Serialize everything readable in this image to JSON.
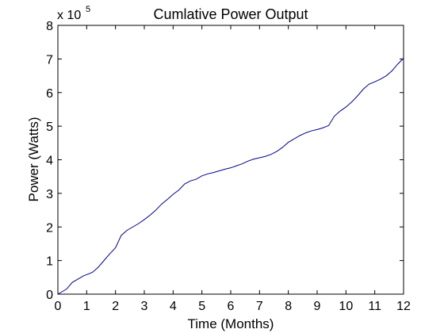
{
  "chart_data": {
    "type": "line",
    "title": "Cumlative Power Output",
    "xlabel": "Time (Months)",
    "ylabel": "Power (Watts)",
    "y_multiplier_label": "x 10",
    "y_multiplier_exponent": "5",
    "xlim": [
      0,
      12
    ],
    "ylim": [
      0,
      8
    ],
    "x_ticks": [
      "0",
      "1",
      "2",
      "3",
      "4",
      "5",
      "6",
      "7",
      "8",
      "9",
      "10",
      "11",
      "12"
    ],
    "y_ticks": [
      "0",
      "1",
      "2",
      "3",
      "4",
      "5",
      "6",
      "7",
      "8"
    ],
    "grid": false,
    "line_color": "#00008b",
    "series": [
      {
        "x": [
          0,
          0.1,
          0.3,
          0.5,
          0.7,
          0.9,
          1.0,
          1.2,
          1.4,
          1.6,
          1.8,
          2.0,
          2.2,
          2.4,
          2.6,
          2.8,
          3.0,
          3.2,
          3.4,
          3.6,
          3.8,
          4.0,
          4.2,
          4.4,
          4.6,
          4.8,
          5.0,
          5.2,
          5.4,
          5.6,
          5.8,
          6.0,
          6.2,
          6.4,
          6.6,
          6.8,
          7.0,
          7.2,
          7.4,
          7.6,
          7.8,
          8.0,
          8.2,
          8.4,
          8.6,
          8.8,
          9.0,
          9.2,
          9.4,
          9.6,
          9.8,
          10.0,
          10.2,
          10.4,
          10.6,
          10.8,
          11.0,
          11.2,
          11.4,
          11.6,
          11.8,
          12.0
        ],
        "y": [
          0,
          0.05,
          0.15,
          0.35,
          0.45,
          0.55,
          0.58,
          0.65,
          0.8,
          1.0,
          1.2,
          1.38,
          1.75,
          1.9,
          2.0,
          2.1,
          2.22,
          2.35,
          2.5,
          2.68,
          2.82,
          2.97,
          3.1,
          3.28,
          3.37,
          3.42,
          3.52,
          3.58,
          3.62,
          3.67,
          3.72,
          3.76,
          3.82,
          3.88,
          3.96,
          4.02,
          4.06,
          4.1,
          4.16,
          4.25,
          4.37,
          4.52,
          4.62,
          4.72,
          4.8,
          4.86,
          4.9,
          4.95,
          5.02,
          5.3,
          5.45,
          5.57,
          5.72,
          5.9,
          6.1,
          6.25,
          6.32,
          6.4,
          6.5,
          6.65,
          6.85,
          7.02
        ]
      }
    ]
  }
}
